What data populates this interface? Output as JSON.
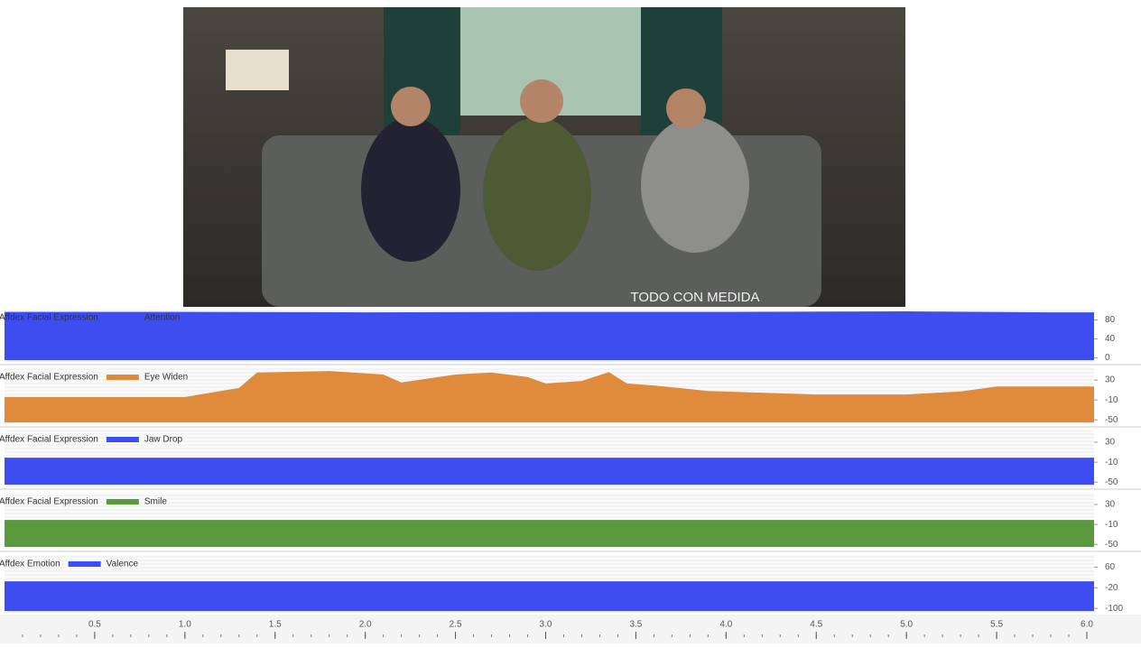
{
  "video": {
    "caption": "TODO CON MEDIDA"
  },
  "time_axis": {
    "xlim": [
      0,
      6.04
    ],
    "xticks": [
      0.5,
      {
        "value": 1,
        "label": "1.0"
      },
      1.5,
      {
        "value": 2,
        "label": "2.0"
      },
      2.5,
      {
        "value": 3,
        "label": "3.0"
      },
      3.5,
      {
        "value": 4,
        "label": "4.0"
      },
      4.5,
      {
        "value": 5,
        "label": "5.0"
      },
      5.5,
      {
        "value": 6,
        "label": "6.0"
      }
    ]
  },
  "chart_data": [
    {
      "type": "area",
      "title": "Affdex Facial Expression",
      "x": [
        0,
        1,
        2,
        3,
        4,
        5,
        5.8,
        6.04
      ],
      "series": [
        {
          "name": "Attention",
          "color": "#3d4df0",
          "values": [
            97,
            97,
            96,
            97,
            97,
            98,
            96,
            96
          ]
        }
      ],
      "xlim": [
        0,
        6.04
      ],
      "ylim": [
        -5,
        100
      ],
      "yticks": [
        80,
        40,
        0
      ]
    },
    {
      "type": "area",
      "title": "Affdex Facial Expression",
      "x": [
        0,
        1,
        1.3,
        1.4,
        1.8,
        2.1,
        2.2,
        2.5,
        2.7,
        2.9,
        3.0,
        3.2,
        3.35,
        3.45,
        3.6,
        3.9,
        4.5,
        5.0,
        5.3,
        5.5,
        6.04
      ],
      "series": [
        {
          "name": "Eye Widen",
          "color": "#e08a3c",
          "values": [
            -4,
            -4,
            14,
            45,
            48,
            41,
            25,
            41,
            45,
            36,
            23,
            28,
            46,
            23,
            19,
            8,
            1,
            1,
            7,
            17,
            17
          ]
        }
      ],
      "xlim": [
        0,
        6.04
      ],
      "ylim": [
        -55,
        50
      ],
      "yticks": [
        30,
        -10,
        -50
      ]
    },
    {
      "type": "area",
      "title": "Affdex Facial Expression",
      "x": [
        0,
        6.04
      ],
      "series": [
        {
          "name": "Jaw Drop",
          "color": "#3d4df0",
          "values": [
            -1,
            -1
          ]
        }
      ],
      "xlim": [
        0,
        6.04
      ],
      "ylim": [
        -55,
        50
      ],
      "yticks": [
        30,
        -10,
        -50
      ]
    },
    {
      "type": "area",
      "title": "Affdex Facial Expression",
      "x": [
        0,
        6.04
      ],
      "series": [
        {
          "name": "Smile",
          "color": "#5a9a3c",
          "values": [
            -1,
            -1
          ]
        }
      ],
      "xlim": [
        0,
        6.04
      ],
      "ylim": [
        -55,
        50
      ],
      "yticks": [
        30,
        -10,
        -50
      ]
    },
    {
      "type": "area",
      "title": "Affdex Emotion",
      "x": [
        0,
        6.04
      ],
      "series": [
        {
          "name": "Valence",
          "color": "#3d4df0",
          "values": [
            5,
            5
          ]
        }
      ],
      "xlim": [
        0,
        6.04
      ],
      "ylim": [
        -110,
        100
      ],
      "yticks": [
        60,
        -20,
        -100
      ]
    }
  ]
}
